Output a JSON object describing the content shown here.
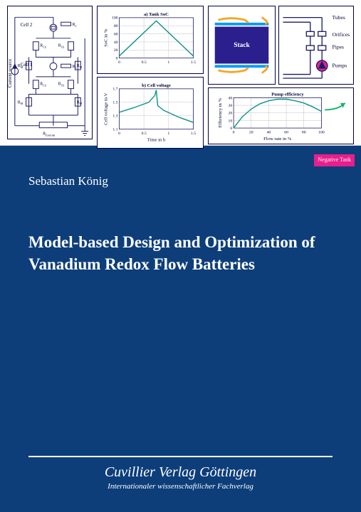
{
  "author": "Sebastian König",
  "title": "Model-based Design and Optimization of Vanadium Redox Flow Batteries",
  "publisher": "Cuvillier Verlag Göttingen",
  "subpublisher": "Internationaler wissenschaftlicher Fachverlag",
  "circuit": {
    "left_label": "Current source",
    "cell2": "Cell 2",
    "cell1": "Cell 1",
    "rc": "R",
    "rc_sub": "C",
    "rch": "R",
    "rch_sub": "Ch",
    "rm": "R",
    "rm_sub": "M",
    "rext": "R",
    "rext_sub": "External",
    "line_color": "#1a1a66",
    "text_color": "#1a1a66"
  },
  "chart_a": {
    "title": "a) Tank SoC",
    "ylabel": "SoC in %",
    "xlabel": "",
    "yticks": [
      0,
      20,
      40,
      60,
      80,
      100
    ],
    "xticks": [
      0,
      0.5,
      1,
      1.5
    ],
    "xlim": [
      0,
      1.5
    ],
    "ylim": [
      0,
      100
    ],
    "data_x": [
      0,
      0.75,
      1.5
    ],
    "data_y": [
      5,
      92,
      5
    ],
    "line_color": "#0d9488",
    "grid_color": "#b0b0c0",
    "axis_color": "#1a1a66"
  },
  "chart_b": {
    "title": "b) Cell voltage",
    "ylabel": "Cell voltage in V",
    "xlabel": "Time in h",
    "yticks": [
      1.1,
      1.3,
      1.5,
      1.7
    ],
    "xticks": [
      0,
      0.5,
      1,
      1.5
    ],
    "xlim": [
      0,
      1.5
    ],
    "ylim": [
      1.1,
      1.7
    ],
    "data_x": [
      0,
      0.3,
      0.6,
      0.72,
      0.75,
      0.78,
      0.9,
      1.2,
      1.5
    ],
    "data_y": [
      1.35,
      1.42,
      1.5,
      1.6,
      1.68,
      1.45,
      1.38,
      1.28,
      1.2
    ],
    "line_color": "#0d9488",
    "grid_color": "#b0b0c0",
    "axis_color": "#1a1a66"
  },
  "stack": {
    "label": "Stack",
    "bg_color": "#2b1f8e",
    "frame_color": "#0066cc",
    "channel_color": "#f5a623",
    "text_color": "#ffffff"
  },
  "hydraulic": {
    "labels": [
      "Tubes",
      "Orifices",
      "Pipes",
      "Pumps"
    ],
    "neg_tank": "Negative Tank",
    "neg_tank_bg": "#e91e8c",
    "pump_color": "#e91e8c",
    "pipe_color": "#1a1a66",
    "arrow_color": "#14b36b"
  },
  "pump_chart": {
    "title": "Pump efficiency",
    "ylabel": "Efficiency in %",
    "xlabel": "Flow rate in %",
    "yticks": [
      0,
      10,
      20,
      30,
      40
    ],
    "xticks": [
      0,
      20,
      40,
      60,
      80,
      100
    ],
    "xlim": [
      0,
      100
    ],
    "ylim": [
      0,
      40
    ],
    "data_x": [
      0,
      10,
      20,
      30,
      40,
      50,
      60,
      70,
      80,
      90,
      100
    ],
    "data_y": [
      0,
      15,
      25,
      32,
      36,
      38,
      38,
      36,
      33,
      28,
      22
    ],
    "line_color": "#0d9488",
    "grid_color": "#b0b0c0"
  },
  "colors": {
    "cover_bg": "#0d3e7a",
    "text": "#ffffff"
  }
}
